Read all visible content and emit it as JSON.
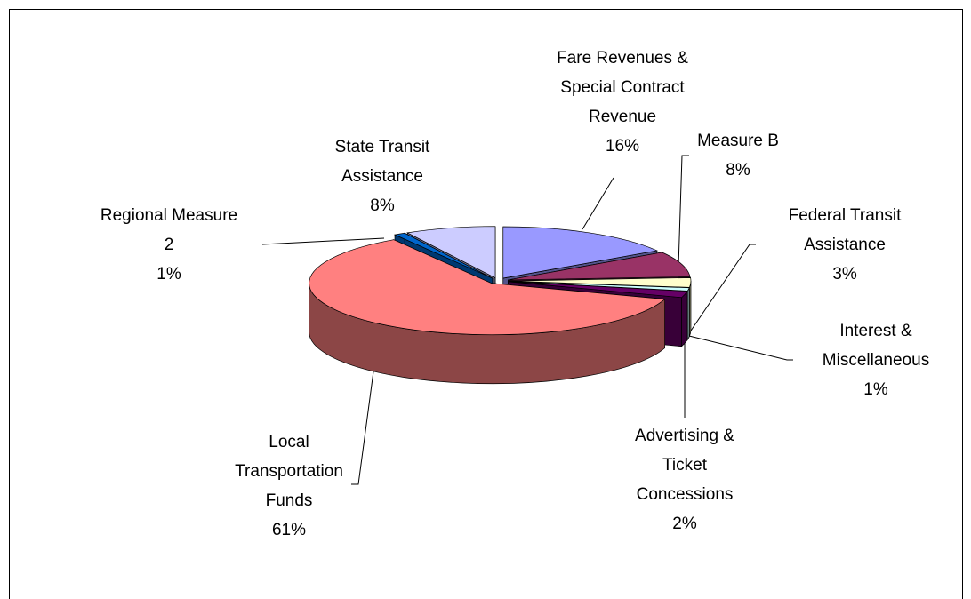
{
  "chart_data": {
    "type": "pie",
    "categories": [
      "Fare Revenues & Special Contract Revenue",
      "Measure B",
      "Federal Transit Assistance",
      "Interest & Miscellaneous",
      "Advertising & Ticket Concessions",
      "Local Transportation Funds",
      "Regional Measure 2",
      "State Transit Assistance"
    ],
    "values": [
      16,
      8,
      3,
      1,
      2,
      61,
      1,
      8
    ],
    "value_labels": [
      "16%",
      "8%",
      "3%",
      "1%",
      "2%",
      "61%",
      "1%",
      "8%"
    ],
    "colors": [
      "#9999ff",
      "#993366",
      "#ffffcc",
      "#ccffff",
      "#660066",
      "#ff8080",
      "#0066cc",
      "#ccccff"
    ]
  }
}
